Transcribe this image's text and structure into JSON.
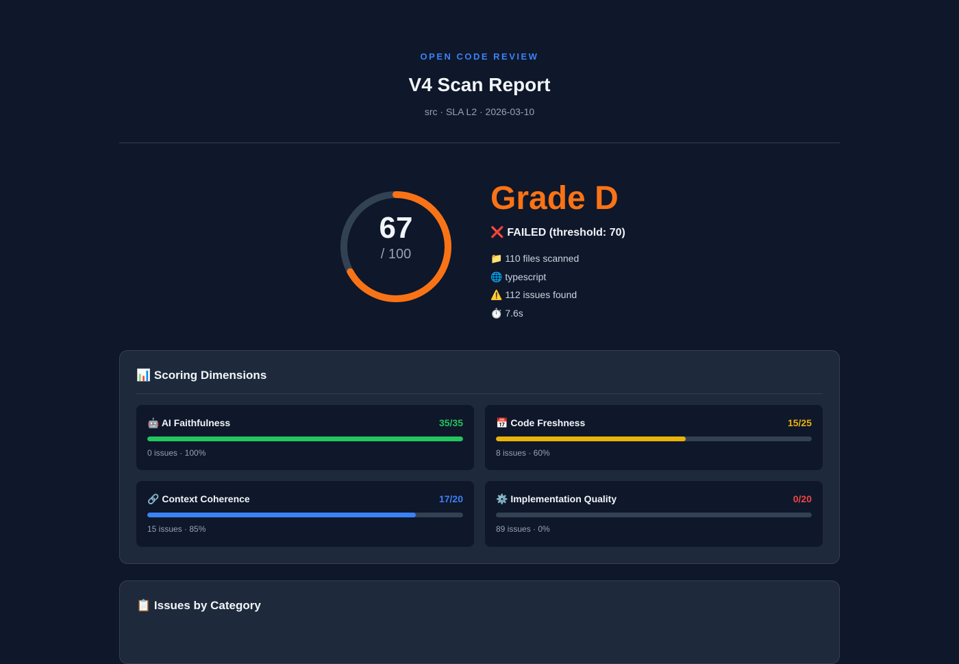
{
  "header": {
    "eyebrow": "OPEN CODE REVIEW",
    "title": "V4 Scan Report",
    "subtitle": "src · SLA L2 · 2026-03-10"
  },
  "summary": {
    "score": 67,
    "max": 100,
    "max_label": "/ 100",
    "color": "#f97316",
    "grade": "Grade D",
    "status_icon": "❌",
    "status": "FAILED (threshold: 70)",
    "meta": [
      {
        "icon": "📁",
        "text": "110 files scanned"
      },
      {
        "icon": "🌐",
        "text": "typescript"
      },
      {
        "icon": "⚠️",
        "text": "112 issues found"
      },
      {
        "icon": "⏱️",
        "text": "7.6s"
      }
    ]
  },
  "dimensions_card": {
    "icon": "📊",
    "title": "Scoring Dimensions",
    "dimensions": [
      {
        "icon": "🤖",
        "name": "AI Faithfulness",
        "score_label": "35/35",
        "score": 35,
        "max": 35,
        "detail": "0 issues · 100%",
        "color": "#22c55e"
      },
      {
        "icon": "📅",
        "name": "Code Freshness",
        "score_label": "15/25",
        "score": 15,
        "max": 25,
        "detail": "8 issues · 60%",
        "color": "#eab308"
      },
      {
        "icon": "🔗",
        "name": "Context Coherence",
        "score_label": "17/20",
        "score": 17,
        "max": 20,
        "detail": "15 issues · 85%",
        "color": "#3b82f6"
      },
      {
        "icon": "⚙️",
        "name": "Implementation Quality",
        "score_label": "0/20",
        "score": 0,
        "max": 20,
        "detail": "89 issues · 0%",
        "color": "#ef4444"
      }
    ]
  },
  "issues_card": {
    "icon": "📋",
    "title": "Issues by Category"
  }
}
